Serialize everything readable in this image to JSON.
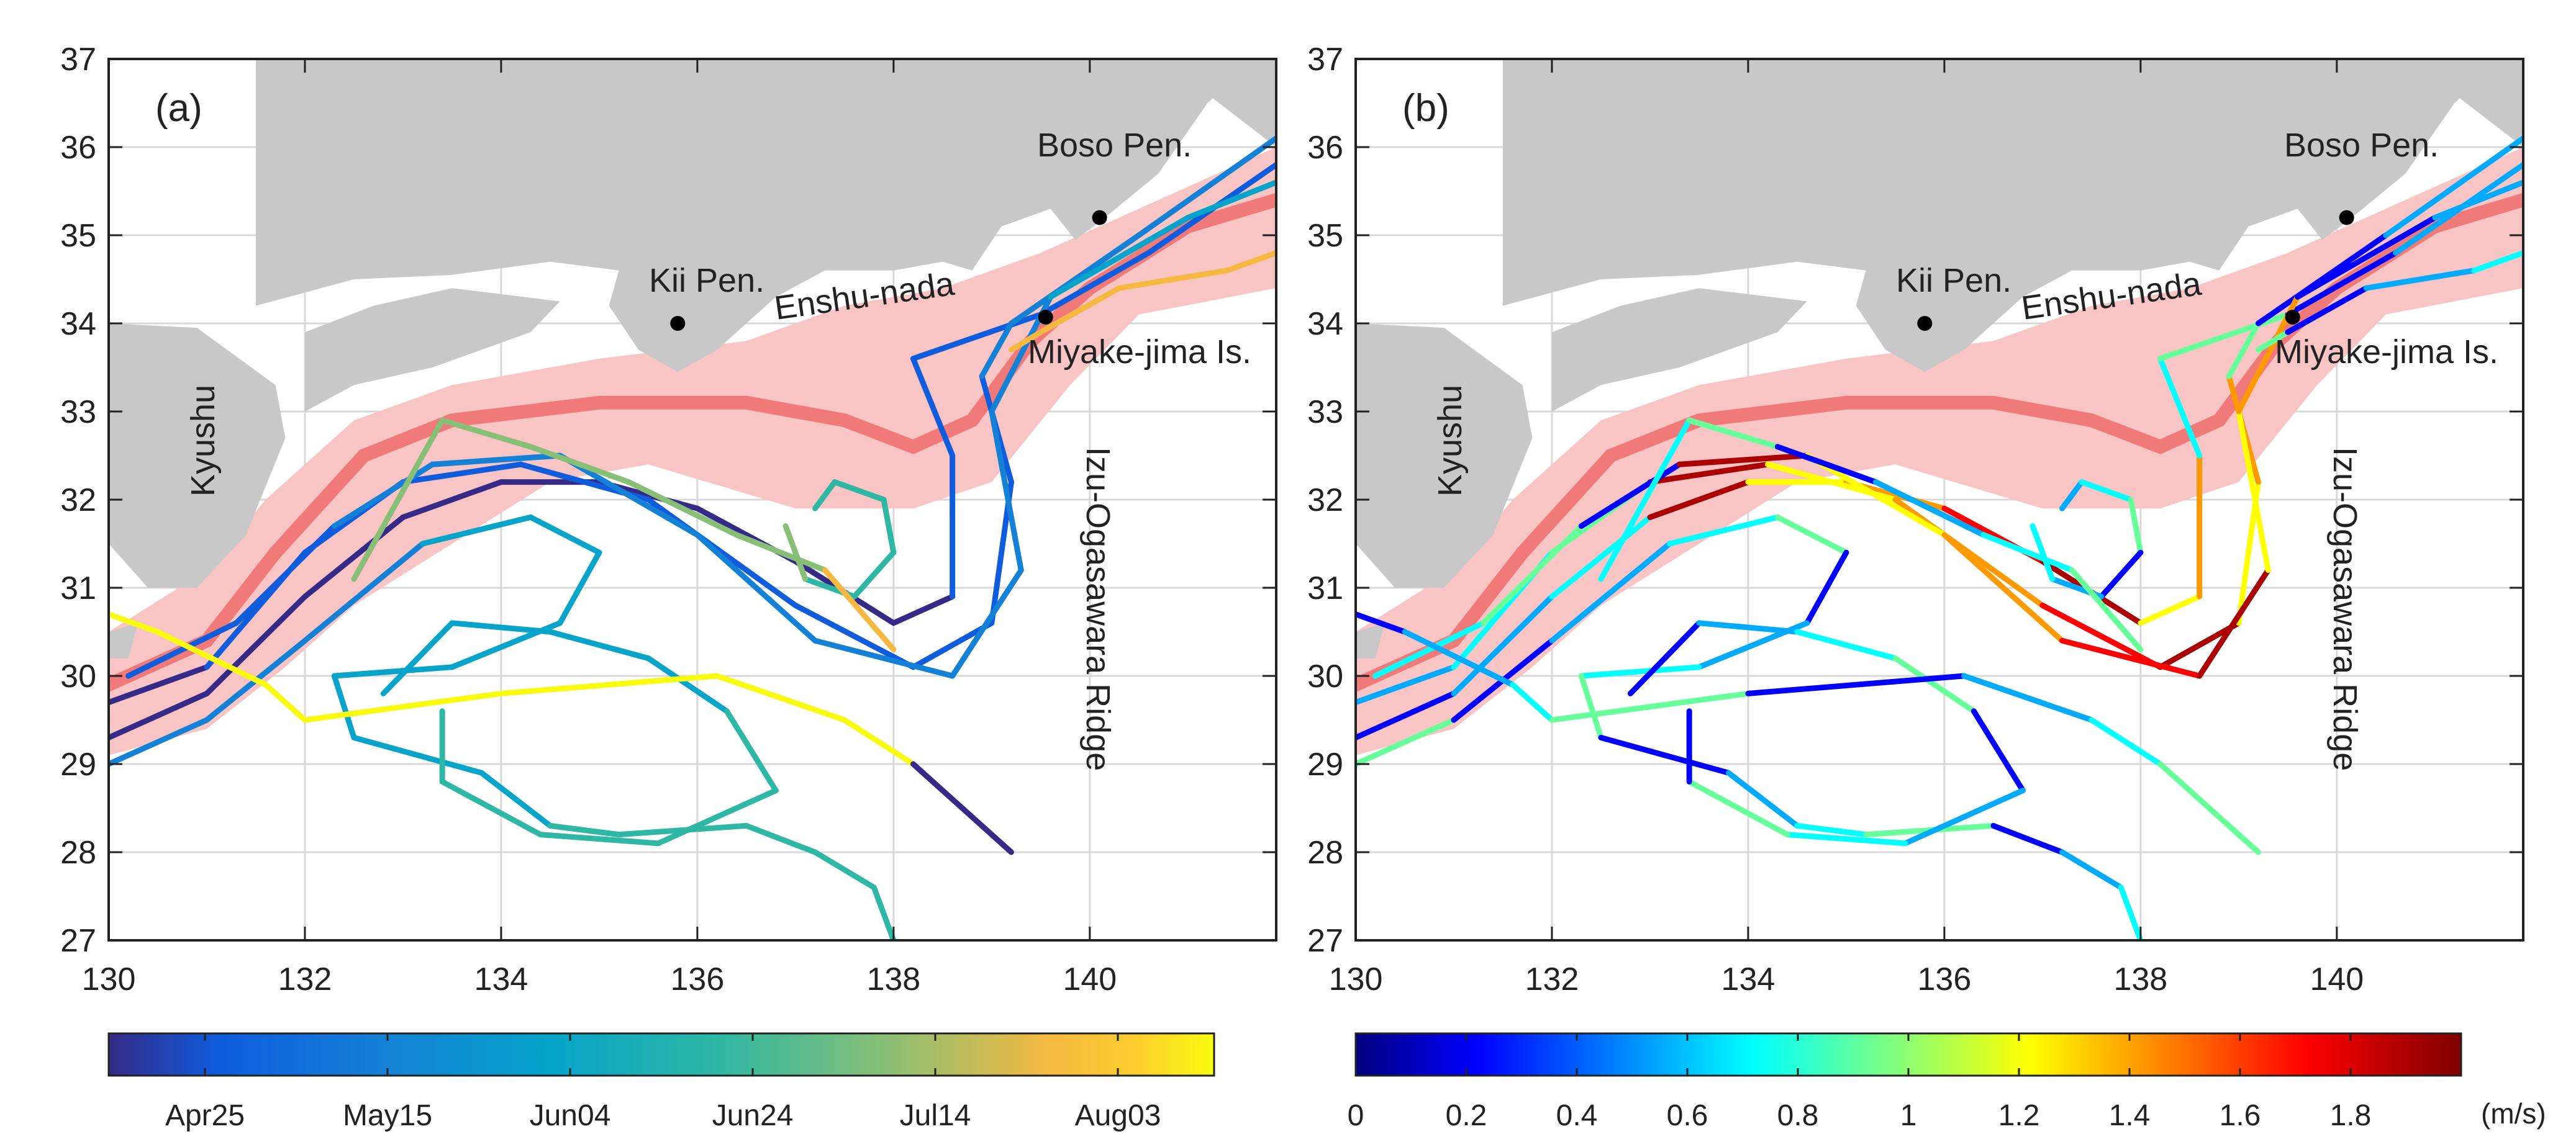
{
  "panels": [
    {
      "label": "(a)",
      "colorbar": {
        "scheme": "parula",
        "tick_labels": [
          "Apr25",
          "May15",
          "Jun04",
          "Jun24",
          "Jul14",
          "Aug03"
        ],
        "unit": ""
      }
    },
    {
      "label": "(b)",
      "colorbar": {
        "scheme": "jet",
        "tick_labels": [
          "0",
          "0.2",
          "0.4",
          "0.6",
          "0.8",
          "1",
          "1.2",
          "1.4",
          "1.6",
          "1.8"
        ],
        "unit": "(m/s)"
      }
    }
  ],
  "axes": {
    "x_ticks": [
      "130",
      "132",
      "134",
      "136",
      "138",
      "140"
    ],
    "y_ticks": [
      "27",
      "28",
      "29",
      "30",
      "31",
      "32",
      "33",
      "34",
      "35",
      "36",
      "37"
    ],
    "xlim": [
      130,
      141.9
    ],
    "ylim": [
      27,
      37
    ],
    "grid": true
  },
  "place_labels": {
    "kyushu": "Kyushu",
    "kii": "Kii Pen.",
    "enshu": "Enshu-nada",
    "boso": "Boso Pen.",
    "miyake": "Miyake-jima Is.",
    "izu": "Izu-Ogasawara Ridge"
  },
  "points": [
    {
      "name": "Kii Pen.",
      "lon": 135.8,
      "lat": 34.0
    },
    {
      "name": "Miyake-jima Is.",
      "lon": 139.55,
      "lat": 34.07
    },
    {
      "name": "Boso Pen.",
      "lon": 140.1,
      "lat": 35.2
    }
  ],
  "colors": {
    "land": "#c8c8c8",
    "kuroshio_band": "#f9c4c4",
    "kuroshio_axis": "#f07a7a",
    "grid": "#d8d8d8"
  }
}
